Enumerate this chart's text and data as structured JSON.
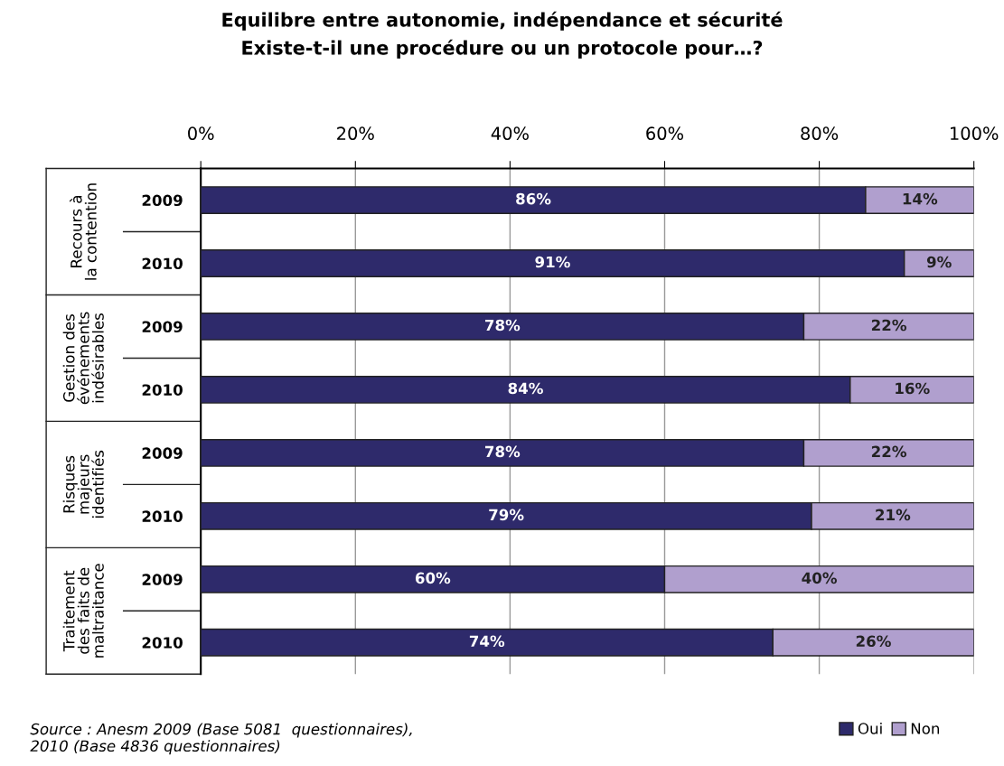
{
  "chart_data": {
    "type": "bar",
    "orientation": "horizontal",
    "stacked": true,
    "title": "Equilibre entre autonomie, indépendance et sécurité\nExiste-t-il une procédure ou un protocole pour…?",
    "categories": [
      "2009",
      "2010",
      "2009",
      "2010",
      "2009",
      "2010",
      "2009",
      "2010"
    ],
    "series": [
      {
        "name": "Oui",
        "color": "#2e2a6b",
        "values": [
          86,
          91,
          78,
          84,
          78,
          79,
          60,
          74
        ]
      },
      {
        "name": "Non",
        "color": "#b09fce",
        "values": [
          14,
          9,
          22,
          16,
          22,
          21,
          40,
          26
        ]
      }
    ],
    "xlim": [
      0,
      100
    ],
    "xticks": [
      {
        "value": 0,
        "label": "0%"
      },
      {
        "value": 20,
        "label": "20%"
      },
      {
        "value": 40,
        "label": "40%"
      },
      {
        "value": 60,
        "label": "60%"
      },
      {
        "value": 80,
        "label": "80%"
      },
      {
        "value": 100,
        "label": "100%"
      }
    ],
    "value_labels": [
      [
        "86%",
        "91%",
        "78%",
        "84%",
        "78%",
        "79%",
        "60%",
        "74%"
      ],
      [
        "14%",
        "9%",
        "22%",
        "16%",
        "22%",
        "21%",
        "40%",
        "26%"
      ]
    ],
    "annotations": [
      "Recours à\nla contention",
      "Gestion des\névénements\nindésirables",
      "Risques\nmajeurs\nidentifiés",
      "Traitement\ndes faits de\nmaltraitance",
      "Source : Anesm 2009 (Base 5081  questionnaires),\n2010 (Base 4836 questionnaires)"
    ],
    "grid": "x",
    "legend": "bottom right"
  }
}
